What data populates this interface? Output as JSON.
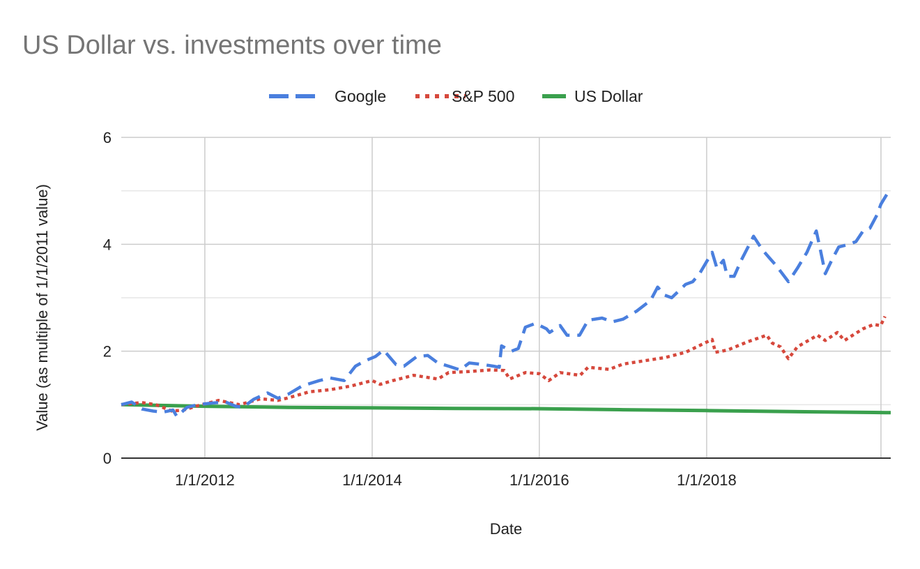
{
  "chart_data": {
    "type": "line",
    "title": "US Dollar vs. investments over time",
    "xlabel": "Date",
    "ylabel": "Value (as multiple of 1/1/2011 value)",
    "xlim": [
      "1/1/2011",
      "3/15/2020"
    ],
    "ylim": [
      0,
      6
    ],
    "x_ticks": [
      "1/1/2012",
      "1/1/2014",
      "1/1/2016",
      "1/1/2018"
    ],
    "y_ticks": [
      0,
      2,
      4,
      6
    ],
    "grid": true,
    "legend": "top-center",
    "series": [
      {
        "name": "Google",
        "color": "#4a7fde",
        "style": "dashed",
        "points": [
          [
            "1/1/2011",
            1.0
          ],
          [
            "2/15/2011",
            1.05
          ],
          [
            "4/1/2011",
            0.92
          ],
          [
            "5/20/2011",
            0.88
          ],
          [
            "7/1/2011",
            0.86
          ],
          [
            "8/15/2011",
            0.9
          ],
          [
            "9/1/2011",
            0.78
          ],
          [
            "10/15/2011",
            0.95
          ],
          [
            "12/1/2011",
            1.0
          ],
          [
            "2/1/2012",
            1.03
          ],
          [
            "4/1/2012",
            1.05
          ],
          [
            "5/15/2012",
            0.97
          ],
          [
            "6/15/2012",
            0.95
          ],
          [
            "8/1/2012",
            1.1
          ],
          [
            "10/1/2012",
            1.22
          ],
          [
            "11/15/2012",
            1.12
          ],
          [
            "1/1/2013",
            1.2
          ],
          [
            "3/1/2013",
            1.35
          ],
          [
            "5/15/2013",
            1.45
          ],
          [
            "7/1/2013",
            1.5
          ],
          [
            "9/1/2013",
            1.45
          ],
          [
            "10/20/2013",
            1.72
          ],
          [
            "12/1/2013",
            1.82
          ],
          [
            "1/15/2014",
            1.9
          ],
          [
            "2/20/2014",
            2.02
          ],
          [
            "4/15/2014",
            1.75
          ],
          [
            "5/20/2014",
            1.72
          ],
          [
            "7/15/2014",
            1.9
          ],
          [
            "9/1/2014",
            1.92
          ],
          [
            "10/15/2014",
            1.78
          ],
          [
            "12/1/2014",
            1.72
          ],
          [
            "1/20/2015",
            1.65
          ],
          [
            "3/1/2015",
            1.78
          ],
          [
            "5/1/2015",
            1.75
          ],
          [
            "6/15/2015",
            1.72
          ],
          [
            "7/10/2015",
            1.7
          ],
          [
            "7/20/2015",
            2.1
          ],
          [
            "9/1/2015",
            2.0
          ],
          [
            "10/1/2015",
            2.05
          ],
          [
            "11/1/2015",
            2.45
          ],
          [
            "12/15/2015",
            2.52
          ],
          [
            "2/1/2016",
            2.42
          ],
          [
            "2/15/2016",
            2.35
          ],
          [
            "4/1/2016",
            2.48
          ],
          [
            "5/1/2016",
            2.3
          ],
          [
            "6/25/2016",
            2.3
          ],
          [
            "8/1/2016",
            2.58
          ],
          [
            "10/1/2016",
            2.62
          ],
          [
            "11/15/2016",
            2.55
          ],
          [
            "1/1/2017",
            2.6
          ],
          [
            "3/1/2017",
            2.75
          ],
          [
            "5/1/2017",
            2.95
          ],
          [
            "6/1/2017",
            3.2
          ],
          [
            "7/1/2017",
            3.05
          ],
          [
            "8/1/2017",
            3.0
          ],
          [
            "10/1/2017",
            3.25
          ],
          [
            "11/1/2017",
            3.3
          ],
          [
            "12/1/2017",
            3.45
          ],
          [
            "1/25/2018",
            3.85
          ],
          [
            "2/15/2018",
            3.55
          ],
          [
            "3/15/2018",
            3.7
          ],
          [
            "4/1/2018",
            3.4
          ],
          [
            "5/1/2018",
            3.4
          ],
          [
            "6/1/2018",
            3.7
          ],
          [
            "7/25/2018",
            4.15
          ],
          [
            "9/1/2018",
            3.9
          ],
          [
            "10/1/2018",
            3.75
          ],
          [
            "11/1/2018",
            3.6
          ],
          [
            "12/24/2018",
            3.3
          ],
          [
            "2/1/2019",
            3.55
          ],
          [
            "3/15/2019",
            3.85
          ],
          [
            "4/25/2019",
            4.25
          ],
          [
            "5/15/2019",
            3.85
          ],
          [
            "6/3/2019",
            3.45
          ],
          [
            "7/1/2019",
            3.7
          ],
          [
            "8/1/2019",
            3.95
          ],
          [
            "9/15/2019",
            4.0
          ],
          [
            "10/15/2019",
            4.05
          ],
          [
            "11/15/2019",
            4.25
          ],
          [
            "12/15/2019",
            4.3
          ],
          [
            "1/15/2020",
            4.55
          ],
          [
            "2/1/2020",
            4.75
          ],
          [
            "2/15/2020",
            4.85
          ],
          [
            "3/15/2020",
            5.05
          ]
        ]
      },
      {
        "name": "S&P 500",
        "color": "#d6483c",
        "style": "dotted",
        "points": [
          [
            "1/1/2011",
            1.0
          ],
          [
            "4/1/2011",
            1.04
          ],
          [
            "6/1/2011",
            1.0
          ],
          [
            "8/10/2011",
            0.88
          ],
          [
            "10/1/2011",
            0.9
          ],
          [
            "12/1/2011",
            0.98
          ],
          [
            "3/1/2012",
            1.08
          ],
          [
            "6/1/2012",
            1.0
          ],
          [
            "9/1/2012",
            1.11
          ],
          [
            "11/15/2012",
            1.08
          ],
          [
            "1/1/2013",
            1.13
          ],
          [
            "4/1/2013",
            1.24
          ],
          [
            "7/1/2013",
            1.28
          ],
          [
            "10/1/2013",
            1.35
          ],
          [
            "1/1/2014",
            1.45
          ],
          [
            "2/5/2014",
            1.38
          ],
          [
            "4/1/2014",
            1.45
          ],
          [
            "7/1/2014",
            1.55
          ],
          [
            "10/15/2014",
            1.48
          ],
          [
            "12/1/2014",
            1.6
          ],
          [
            "3/1/2015",
            1.62
          ],
          [
            "6/1/2015",
            1.65
          ],
          [
            "8/1/2015",
            1.64
          ],
          [
            "8/25/2015",
            1.48
          ],
          [
            "11/1/2015",
            1.6
          ],
          [
            "1/1/2016",
            1.58
          ],
          [
            "2/11/2016",
            1.45
          ],
          [
            "4/1/2016",
            1.6
          ],
          [
            "6/27/2016",
            1.55
          ],
          [
            "8/1/2016",
            1.7
          ],
          [
            "11/1/2016",
            1.66
          ],
          [
            "1/1/2017",
            1.76
          ],
          [
            "4/1/2017",
            1.82
          ],
          [
            "7/1/2017",
            1.88
          ],
          [
            "10/1/2017",
            1.98
          ],
          [
            "1/25/2018",
            2.22
          ],
          [
            "2/8/2018",
            1.98
          ],
          [
            "4/1/2018",
            2.02
          ],
          [
            "7/1/2018",
            2.18
          ],
          [
            "9/20/2018",
            2.3
          ],
          [
            "10/15/2018",
            2.15
          ],
          [
            "11/20/2018",
            2.08
          ],
          [
            "12/24/2018",
            1.86
          ],
          [
            "2/1/2019",
            2.08
          ],
          [
            "4/30/2019",
            2.3
          ],
          [
            "6/3/2019",
            2.2
          ],
          [
            "7/26/2019",
            2.35
          ],
          [
            "8/26/2019",
            2.2
          ],
          [
            "10/1/2019",
            2.3
          ],
          [
            "11/15/2019",
            2.42
          ],
          [
            "12/31/2019",
            2.5
          ],
          [
            "1/31/2020",
            2.48
          ],
          [
            "2/19/2020",
            2.65
          ]
        ]
      },
      {
        "name": "US Dollar",
        "color": "#3aa04d",
        "style": "solid",
        "points": [
          [
            "1/1/2011",
            1.0
          ],
          [
            "1/1/2012",
            0.97
          ],
          [
            "1/1/2013",
            0.95
          ],
          [
            "1/1/2014",
            0.94
          ],
          [
            "1/1/2015",
            0.93
          ],
          [
            "1/1/2016",
            0.925
          ],
          [
            "1/1/2017",
            0.905
          ],
          [
            "1/1/2018",
            0.89
          ],
          [
            "1/1/2019",
            0.87
          ],
          [
            "1/1/2020",
            0.855
          ],
          [
            "3/15/2020",
            0.85
          ]
        ]
      }
    ]
  }
}
